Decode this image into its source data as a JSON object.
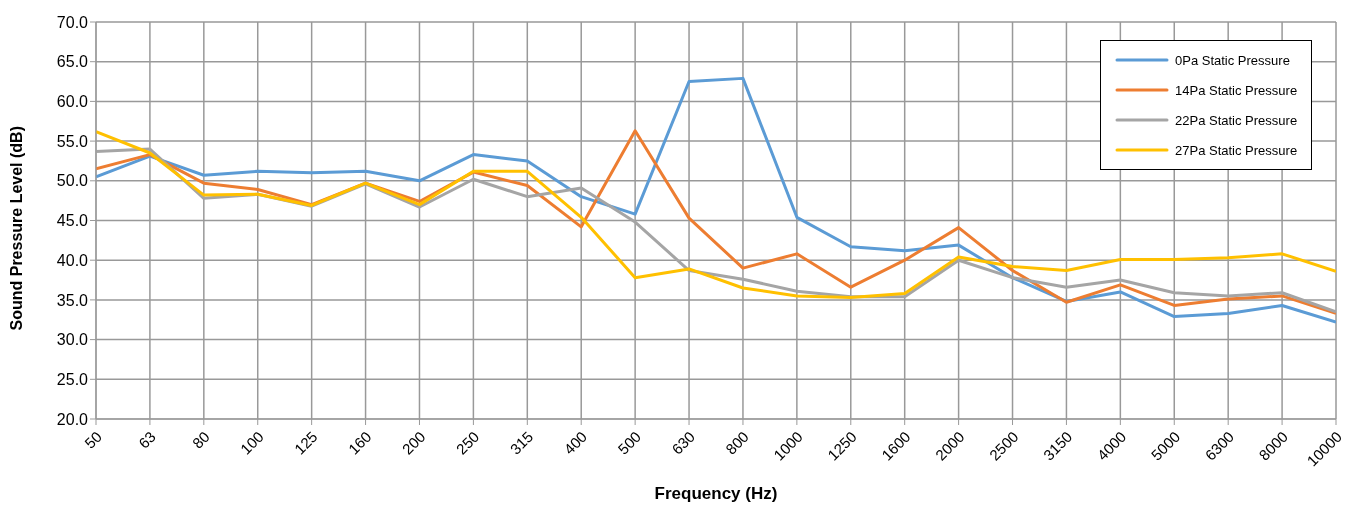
{
  "chart_data": {
    "type": "line",
    "xlabel": "Frequency (Hz)",
    "ylabel": "Sound Pressure Level  (dB)",
    "categories": [
      "50",
      "63",
      "80",
      "100",
      "125",
      "160",
      "200",
      "250",
      "315",
      "400",
      "500",
      "630",
      "800",
      "1000",
      "1250",
      "1600",
      "2000",
      "2500",
      "3150",
      "4000",
      "5000",
      "6300",
      "8000",
      "10000"
    ],
    "ylim": [
      20,
      70
    ],
    "yticks": [
      {
        "value": 20,
        "label": "20.0"
      },
      {
        "value": 25,
        "label": "25.0"
      },
      {
        "value": 30,
        "label": "30.0"
      },
      {
        "value": 35,
        "label": "35.0"
      },
      {
        "value": 40,
        "label": "40.0"
      },
      {
        "value": 45,
        "label": "45.0"
      },
      {
        "value": 50,
        "label": "50.0"
      },
      {
        "value": 55,
        "label": "55.0"
      },
      {
        "value": 60,
        "label": "60.0"
      },
      {
        "value": 65,
        "label": "65.0"
      },
      {
        "value": 70,
        "label": "70.0"
      }
    ],
    "grid": true,
    "legend": "top right",
    "marker": "none",
    "line_style": "solid",
    "series": [
      {
        "name": "0Pa Static Pressure",
        "color": "#5b9bd5",
        "values": [
          50.5,
          53.1,
          50.7,
          51.2,
          51.0,
          51.2,
          50.0,
          53.3,
          52.5,
          48.0,
          45.8,
          62.5,
          62.9,
          45.4,
          41.7,
          41.2,
          41.9,
          37.8,
          34.8,
          36.0,
          32.9,
          33.3,
          34.3,
          32.2
        ]
      },
      {
        "name": "14Pa Static Pressure",
        "color": "#ed7d31",
        "values": [
          51.5,
          53.3,
          49.7,
          48.9,
          47.0,
          49.7,
          47.4,
          51.1,
          49.4,
          44.2,
          56.3,
          45.3,
          39.0,
          40.8,
          36.6,
          40.0,
          44.1,
          38.7,
          34.7,
          36.9,
          34.3,
          35.1,
          35.5,
          33.3
        ]
      },
      {
        "name": "22Pa Static Pressure",
        "color": "#a5a5a5",
        "values": [
          53.7,
          54.0,
          47.8,
          48.3,
          46.8,
          49.6,
          46.7,
          50.2,
          48.0,
          49.1,
          44.8,
          38.7,
          37.6,
          36.1,
          35.4,
          35.4,
          40.0,
          37.8,
          36.6,
          37.5,
          35.9,
          35.5,
          35.9,
          33.5
        ]
      },
      {
        "name": "27Pa Static Pressure",
        "color": "#ffc000",
        "values": [
          56.2,
          53.5,
          48.2,
          48.3,
          46.9,
          49.7,
          47.0,
          51.2,
          51.2,
          45.4,
          37.8,
          38.9,
          36.5,
          35.5,
          35.3,
          35.8,
          40.4,
          39.2,
          38.7,
          40.1,
          40.1,
          40.3,
          40.8,
          38.6
        ]
      }
    ]
  }
}
